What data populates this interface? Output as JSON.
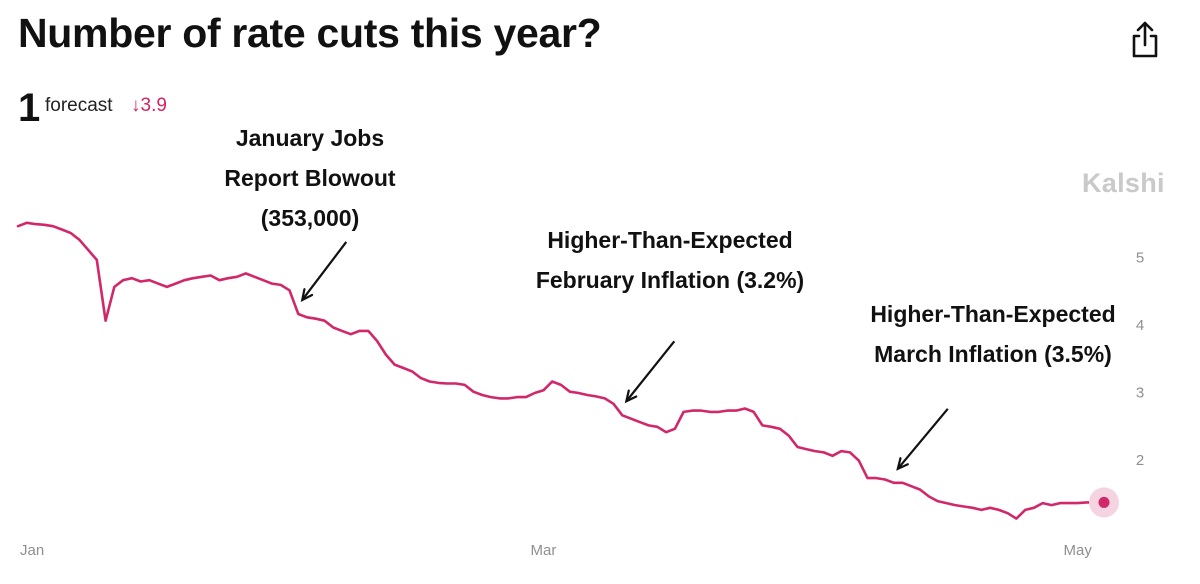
{
  "header": {
    "title": "Number of rate cuts this year?",
    "forecast_value": "1",
    "forecast_label": "forecast",
    "forecast_change": "↓3.9",
    "share_icon": "share-icon"
  },
  "brand": "Kalshi",
  "colors": {
    "line": "#d0286a",
    "marker_halo": "#f6d3e1",
    "change": "#d7225e"
  },
  "chart_data": {
    "type": "line",
    "title": "Number of rate cuts this year?",
    "xlabel": "",
    "ylabel": "",
    "x_ticks": [
      "Jan",
      "Mar",
      "May"
    ],
    "y_ticks": [
      2,
      3,
      4,
      5
    ],
    "ylim": [
      1.1,
      6.0
    ],
    "xlim": [
      "2024-01-01",
      "2024-05-04"
    ],
    "grid": false,
    "series": [
      {
        "x": [
          "2024-01-01",
          "2024-01-02",
          "2024-01-03",
          "2024-01-04",
          "2024-01-05",
          "2024-01-06",
          "2024-01-07",
          "2024-01-08",
          "2024-01-09",
          "2024-01-10",
          "2024-01-11",
          "2024-01-12",
          "2024-01-13",
          "2024-01-14",
          "2024-01-15",
          "2024-01-16",
          "2024-01-17",
          "2024-01-18",
          "2024-01-19",
          "2024-01-20",
          "2024-01-21",
          "2024-01-22",
          "2024-01-23",
          "2024-01-24",
          "2024-01-25",
          "2024-01-26",
          "2024-01-27",
          "2024-01-28",
          "2024-01-29",
          "2024-01-30",
          "2024-01-31",
          "2024-02-01",
          "2024-02-02",
          "2024-02-03",
          "2024-02-04",
          "2024-02-05",
          "2024-02-06",
          "2024-02-07",
          "2024-02-08",
          "2024-02-09",
          "2024-02-10",
          "2024-02-11",
          "2024-02-12",
          "2024-02-13",
          "2024-02-14",
          "2024-02-15",
          "2024-02-16",
          "2024-02-17",
          "2024-02-18",
          "2024-02-19",
          "2024-02-20",
          "2024-02-21",
          "2024-02-22",
          "2024-02-23",
          "2024-02-24",
          "2024-02-25",
          "2024-02-26",
          "2024-02-27",
          "2024-02-28",
          "2024-02-29",
          "2024-03-01",
          "2024-03-02",
          "2024-03-03",
          "2024-03-04",
          "2024-03-05",
          "2024-03-06",
          "2024-03-07",
          "2024-03-08",
          "2024-03-09",
          "2024-03-10",
          "2024-03-11",
          "2024-03-12",
          "2024-03-13",
          "2024-03-14",
          "2024-03-15",
          "2024-03-16",
          "2024-03-17",
          "2024-03-18",
          "2024-03-19",
          "2024-03-20",
          "2024-03-21",
          "2024-03-22",
          "2024-03-23",
          "2024-03-24",
          "2024-03-25",
          "2024-03-26",
          "2024-03-27",
          "2024-03-28",
          "2024-03-29",
          "2024-03-30",
          "2024-03-31",
          "2024-04-01",
          "2024-04-02",
          "2024-04-03",
          "2024-04-04",
          "2024-04-05",
          "2024-04-06",
          "2024-04-07",
          "2024-04-08",
          "2024-04-09",
          "2024-04-10",
          "2024-04-11",
          "2024-04-12",
          "2024-04-13",
          "2024-04-14",
          "2024-04-15",
          "2024-04-16",
          "2024-04-17",
          "2024-04-18",
          "2024-04-19",
          "2024-04-20",
          "2024-04-21",
          "2024-04-22",
          "2024-04-23",
          "2024-04-24",
          "2024-04-25",
          "2024-04-26",
          "2024-04-27",
          "2024-04-28",
          "2024-04-29",
          "2024-04-30",
          "2024-05-01",
          "2024-05-02",
          "2024-05-03",
          "2024-05-04"
        ],
        "values": [
          5.45,
          5.5,
          5.48,
          5.47,
          5.45,
          5.4,
          5.35,
          5.25,
          5.1,
          4.95,
          4.05,
          4.55,
          4.65,
          4.68,
          4.63,
          4.65,
          4.6,
          4.55,
          4.6,
          4.65,
          4.68,
          4.7,
          4.72,
          4.65,
          4.68,
          4.7,
          4.75,
          4.7,
          4.65,
          4.6,
          4.58,
          4.5,
          4.15,
          4.1,
          4.08,
          4.05,
          3.95,
          3.9,
          3.85,
          3.9,
          3.9,
          3.75,
          3.55,
          3.4,
          3.35,
          3.3,
          3.2,
          3.15,
          3.13,
          3.12,
          3.12,
          3.1,
          3.0,
          2.95,
          2.92,
          2.9,
          2.9,
          2.92,
          2.92,
          2.98,
          3.02,
          3.15,
          3.1,
          3.0,
          2.98,
          2.95,
          2.93,
          2.9,
          2.82,
          2.65,
          2.6,
          2.55,
          2.5,
          2.48,
          2.4,
          2.45,
          2.7,
          2.72,
          2.72,
          2.7,
          2.7,
          2.72,
          2.72,
          2.75,
          2.7,
          2.5,
          2.48,
          2.45,
          2.35,
          2.18,
          2.15,
          2.12,
          2.1,
          2.05,
          2.12,
          2.1,
          1.98,
          1.72,
          1.72,
          1.7,
          1.65,
          1.65,
          1.6,
          1.55,
          1.45,
          1.38,
          1.35,
          1.32,
          1.3,
          1.28,
          1.25,
          1.28,
          1.25,
          1.2,
          1.12,
          1.25,
          1.28,
          1.35,
          1.32,
          1.35,
          1.35,
          1.35,
          1.36,
          1.36,
          1.36
        ]
      }
    ],
    "annotations": [
      {
        "lines": [
          "January Jobs",
          "Report Blowout",
          "(353,000)"
        ],
        "date": "2024-02-02"
      },
      {
        "lines": [
          "Higher-Than-Expected",
          "February Inflation (3.2%)"
        ],
        "date": "2024-03-10"
      },
      {
        "lines": [
          "Higher-Than-Expected",
          "March Inflation (3.5%)"
        ],
        "date": "2024-04-10"
      }
    ]
  }
}
